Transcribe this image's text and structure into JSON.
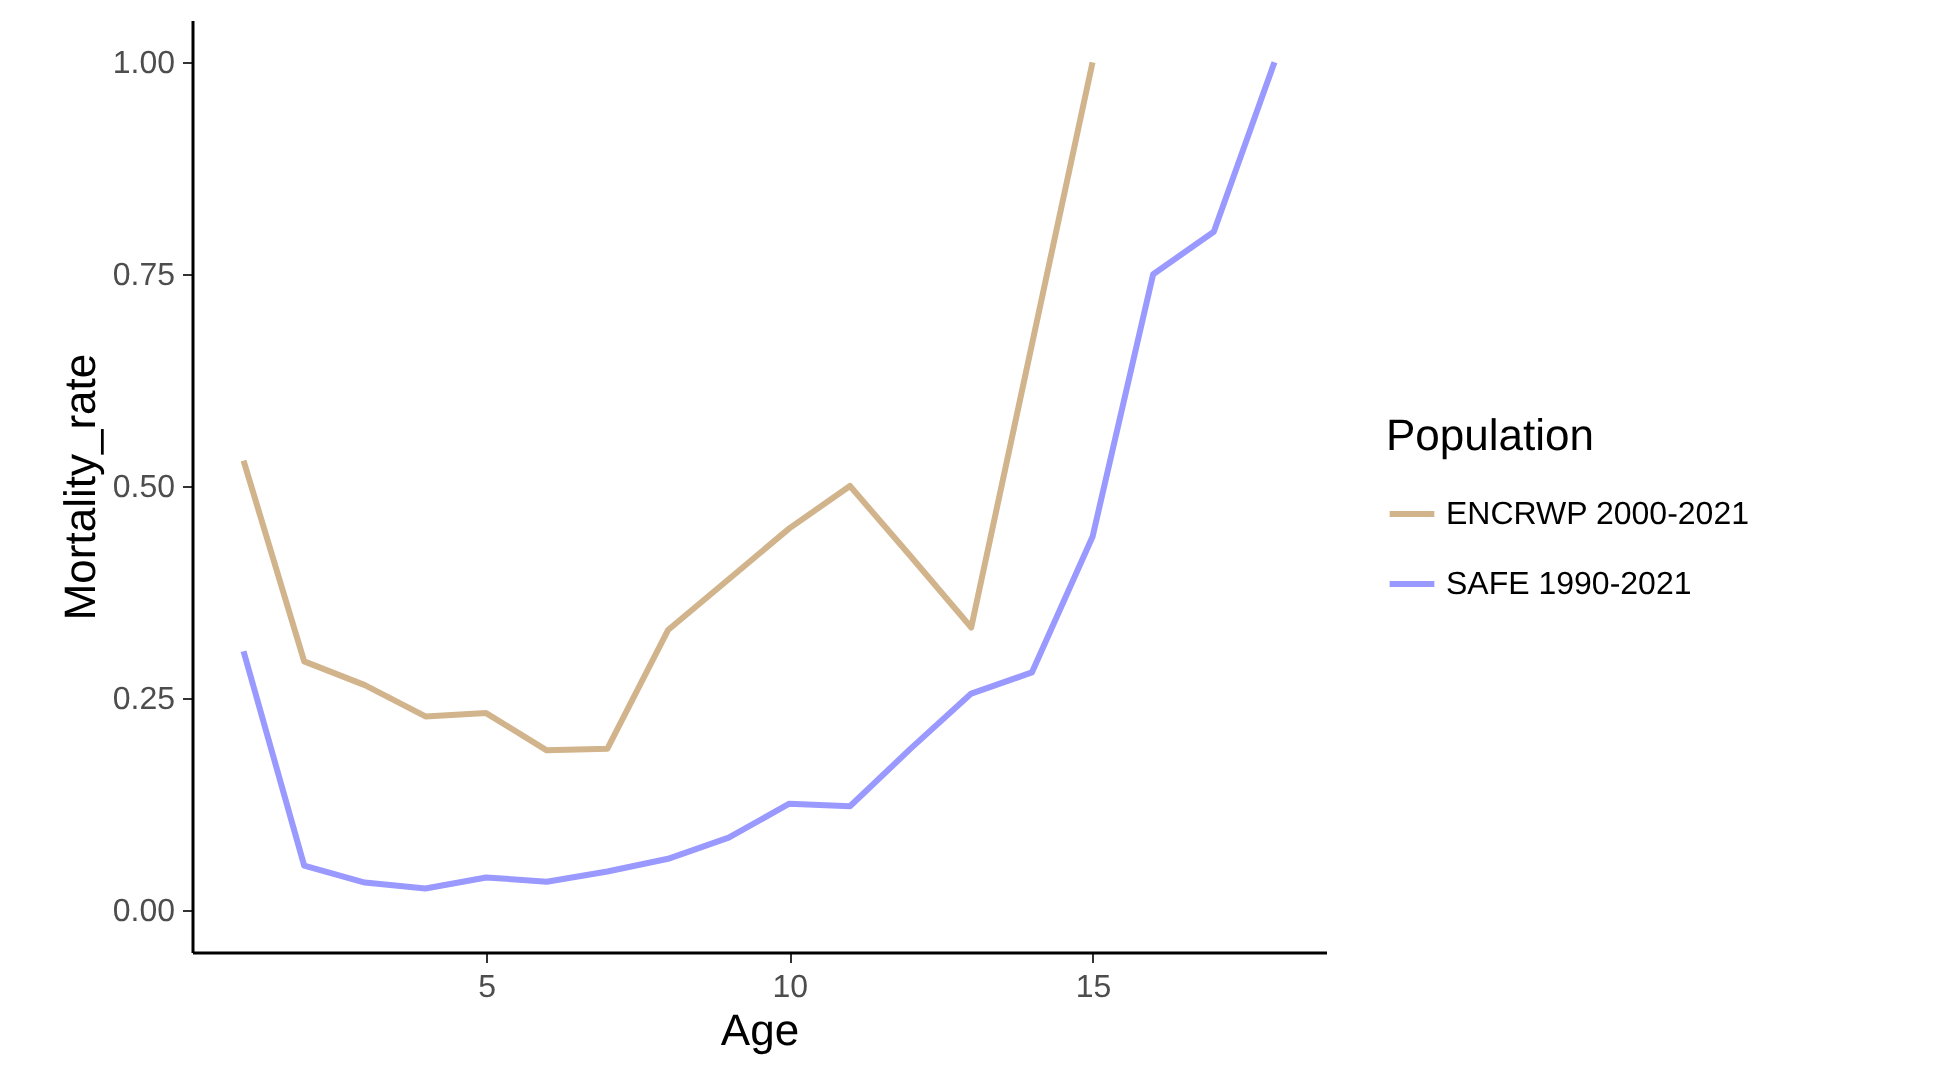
{
  "chart_data": {
    "type": "line",
    "xlabel": "Age",
    "ylabel": "Mortality_rate",
    "legend_title": "Population",
    "legend": "right",
    "grid": false,
    "line_style": "solid",
    "marker": "none",
    "x": [
      1,
      2,
      3,
      4,
      5,
      6,
      7,
      8,
      9,
      10,
      11,
      12,
      13,
      14,
      15,
      16,
      17,
      18
    ],
    "xlim": [
      0.15,
      18.85
    ],
    "xticks": [
      5,
      10,
      15
    ],
    "ylim": [
      -0.05,
      1.05
    ],
    "yticks": [
      {
        "value": 0,
        "label": "0.00"
      },
      {
        "value": 0.25,
        "label": "0.25"
      },
      {
        "value": 0.5,
        "label": "0.50"
      },
      {
        "value": 0.75,
        "label": "0.75"
      },
      {
        "value": 1,
        "label": "1.00"
      }
    ],
    "series": [
      {
        "name": "ENCRWP 2000-2021",
        "color": "#d2b48c",
        "values": [
          0.53,
          0.293,
          0.265,
          0.228,
          0.232,
          0.188,
          0.19,
          0.33,
          0.39,
          0.45,
          0.5,
          0.417,
          0.333,
          0.667,
          1.0,
          null,
          null,
          null
        ]
      },
      {
        "name": "SAFE 1990-2021",
        "color": "#9999ff",
        "values": [
          0.305,
          0.052,
          0.032,
          0.025,
          0.038,
          0.033,
          0.045,
          0.06,
          0.085,
          0.125,
          0.122,
          0.19,
          0.255,
          0.28,
          0.44,
          0.75,
          0.8,
          1.0
        ]
      }
    ]
  }
}
